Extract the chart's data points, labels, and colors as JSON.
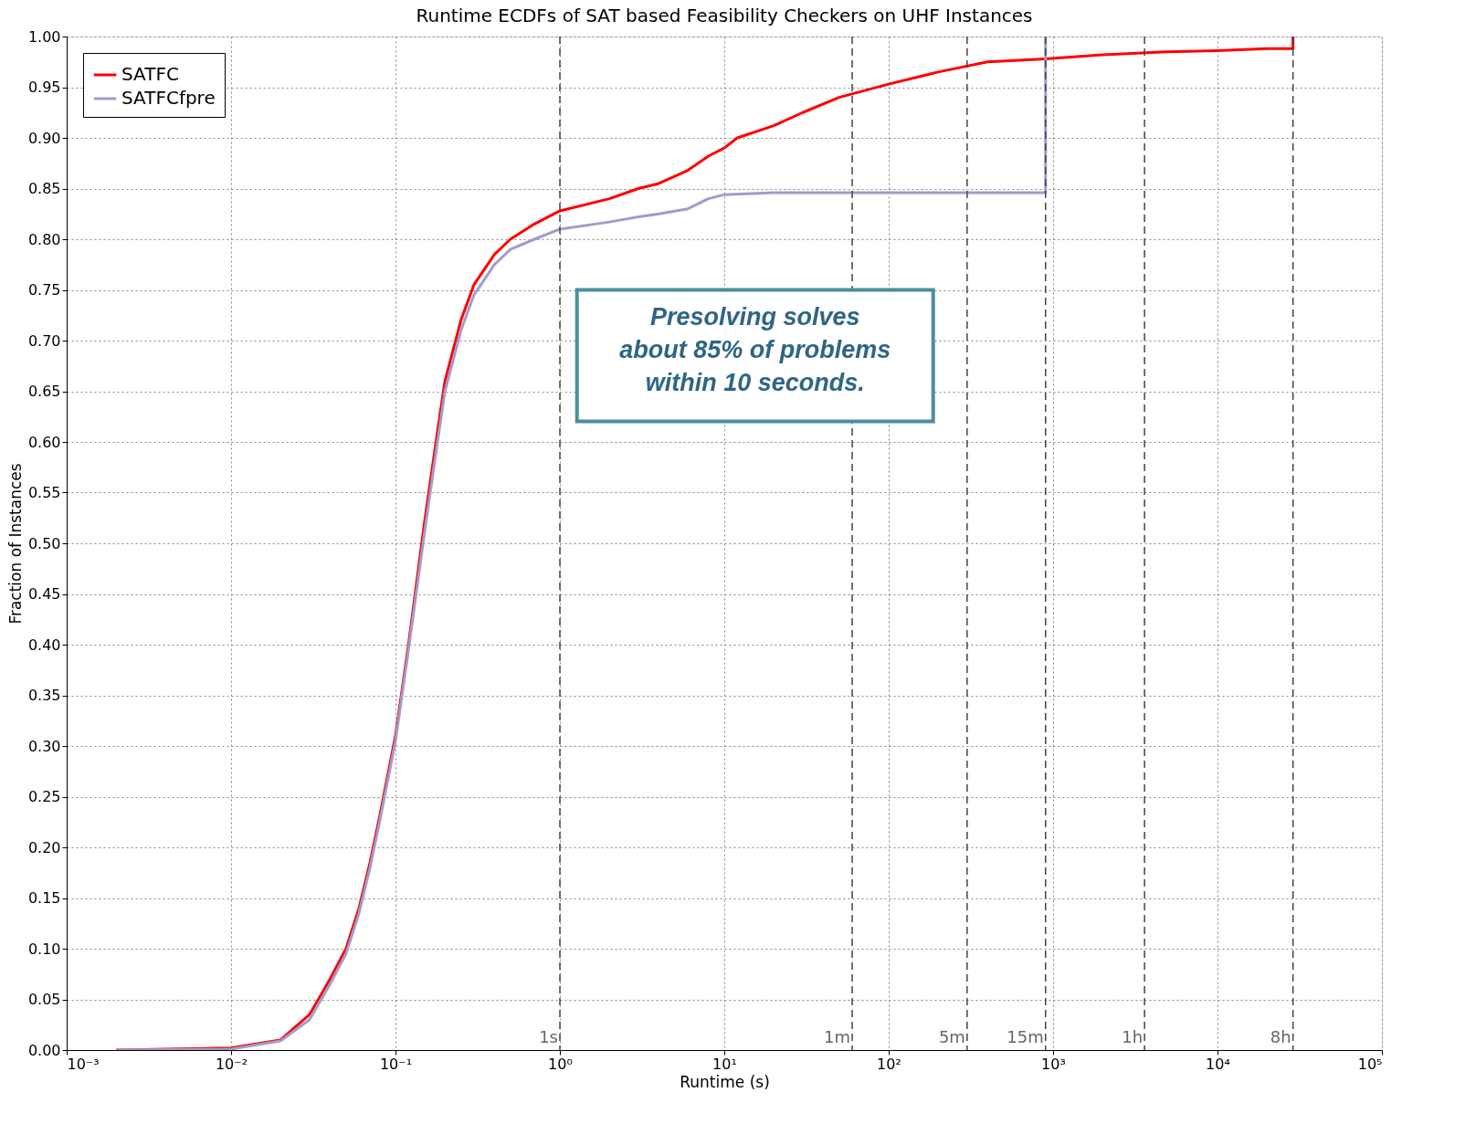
{
  "chart_data": {
    "type": "line",
    "title": "Runtime ECDFs of SAT based Feasibility Checkers on UHF Instances",
    "xlabel": "Runtime (s)",
    "ylabel": "Fraction of Instances",
    "log": "x",
    "grid": true,
    "legend": "top left",
    "line_style": "solid",
    "marker": "none",
    "xlim": [
      0.001,
      100000
    ],
    "xticks": [
      {
        "value": 0.001,
        "label": "10⁻³"
      },
      {
        "value": 0.01,
        "label": "10⁻²"
      },
      {
        "value": 0.1,
        "label": "10⁻¹"
      },
      {
        "value": 1,
        "label": "10⁰"
      },
      {
        "value": 10,
        "label": "10¹"
      },
      {
        "value": 100,
        "label": "10²"
      },
      {
        "value": 1000,
        "label": "10³"
      },
      {
        "value": 10000,
        "label": "10⁴"
      },
      {
        "value": 100000,
        "label": "10⁵"
      }
    ],
    "ylim": [
      0,
      1
    ],
    "yticks": [
      {
        "value": 0,
        "label": "0.00"
      },
      {
        "value": 0.05,
        "label": "0.05"
      },
      {
        "value": 0.1,
        "label": "0.10"
      },
      {
        "value": 0.15,
        "label": "0.15"
      },
      {
        "value": 0.2,
        "label": "0.20"
      },
      {
        "value": 0.25,
        "label": "0.25"
      },
      {
        "value": 0.3,
        "label": "0.30"
      },
      {
        "value": 0.35,
        "label": "0.35"
      },
      {
        "value": 0.4,
        "label": "0.40"
      },
      {
        "value": 0.45,
        "label": "0.45"
      },
      {
        "value": 0.5,
        "label": "0.50"
      },
      {
        "value": 0.55,
        "label": "0.55"
      },
      {
        "value": 0.6,
        "label": "0.60"
      },
      {
        "value": 0.65,
        "label": "0.65"
      },
      {
        "value": 0.7,
        "label": "0.70"
      },
      {
        "value": 0.75,
        "label": "0.75"
      },
      {
        "value": 0.8,
        "label": "0.80"
      },
      {
        "value": 0.85,
        "label": "0.85"
      },
      {
        "value": 0.9,
        "label": "0.90"
      },
      {
        "value": 0.95,
        "label": "0.95"
      },
      {
        "value": 1,
        "label": "1.00"
      }
    ],
    "series": [
      {
        "name": "SATFC",
        "color": "#ff0000",
        "x": [
          0.002,
          0.01,
          0.02,
          0.03,
          0.04,
          0.05,
          0.06,
          0.07,
          0.08,
          0.1,
          0.12,
          0.15,
          0.18,
          0.2,
          0.25,
          0.3,
          0.4,
          0.5,
          0.7,
          1,
          2,
          3,
          4,
          6,
          8,
          10,
          12,
          20,
          30,
          50,
          100,
          200,
          400,
          900,
          2000,
          5000,
          10000,
          20000,
          28800,
          28800
        ],
        "values": [
          0,
          0.002,
          0.01,
          0.035,
          0.07,
          0.1,
          0.14,
          0.185,
          0.23,
          0.31,
          0.4,
          0.52,
          0.61,
          0.66,
          0.72,
          0.755,
          0.785,
          0.8,
          0.815,
          0.828,
          0.84,
          0.85,
          0.855,
          0.868,
          0.882,
          0.89,
          0.9,
          0.912,
          0.925,
          0.94,
          0.953,
          0.965,
          0.975,
          0.978,
          0.982,
          0.985,
          0.986,
          0.988,
          0.988,
          1
        ]
      },
      {
        "name": "SATFCfpre",
        "color": "#a09ccc",
        "x": [
          0.002,
          0.01,
          0.02,
          0.03,
          0.04,
          0.05,
          0.06,
          0.07,
          0.08,
          0.1,
          0.12,
          0.15,
          0.18,
          0.2,
          0.25,
          0.3,
          0.4,
          0.5,
          0.7,
          1,
          2,
          3,
          4,
          6,
          8,
          10,
          20,
          100,
          900,
          900
        ],
        "values": [
          0,
          0.001,
          0.009,
          0.03,
          0.065,
          0.095,
          0.135,
          0.18,
          0.225,
          0.305,
          0.395,
          0.51,
          0.6,
          0.65,
          0.71,
          0.745,
          0.775,
          0.79,
          0.8,
          0.81,
          0.817,
          0.822,
          0.825,
          0.83,
          0.84,
          0.844,
          0.846,
          0.846,
          0.846,
          1
        ]
      }
    ],
    "ref_lines": [
      {
        "axis": "x",
        "value": 1,
        "label": "1s",
        "line_style": "dashed",
        "color": "#444444"
      },
      {
        "axis": "x",
        "value": 60,
        "label": "1m",
        "line_style": "dashed",
        "color": "#444444"
      },
      {
        "axis": "x",
        "value": 300,
        "label": "5m",
        "line_style": "dashed",
        "color": "#444444"
      },
      {
        "axis": "x",
        "value": 900,
        "label": "15m",
        "line_style": "dashed",
        "color": "#444444"
      },
      {
        "axis": "x",
        "value": 3600,
        "label": "1h",
        "line_style": "dashed",
        "color": "#444444"
      },
      {
        "axis": "x",
        "value": 28800,
        "label": "8h",
        "line_style": "dashed",
        "color": "#444444"
      }
    ],
    "annotations": [
      "Presolving solves about 85% of problems within 10 seconds."
    ]
  }
}
